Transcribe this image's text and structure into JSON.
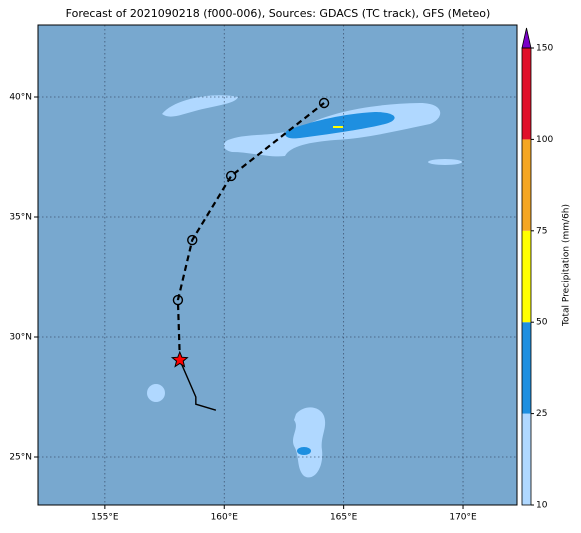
{
  "map": {
    "title": "Forecast of 2021090218 (f000-006), Sources: GDACS (TC track), GFS (Meteo)",
    "xlim": [
      152.2,
      172.26
    ],
    "ylim": [
      23,
      43
    ],
    "xticks": [
      {
        "value": 155,
        "label": "155°E"
      },
      {
        "value": 160,
        "label": "160°E"
      },
      {
        "value": 165,
        "label": "165°E"
      },
      {
        "value": 170,
        "label": "170°E"
      }
    ],
    "yticks": [
      {
        "value": 25,
        "label": "25°N"
      },
      {
        "value": 30,
        "label": "30°N"
      },
      {
        "value": 35,
        "label": "35°N"
      },
      {
        "value": 40,
        "label": "40°N"
      }
    ],
    "grid": true,
    "track": {
      "past": {
        "lon": [
          158.14,
          158.81,
          158.81,
          159.65
        ],
        "lat": [
          29.04,
          27.5,
          27.2,
          26.95
        ]
      },
      "forecast": {
        "lon": [
          158.14,
          158.06,
          158.66,
          160.29,
          164.18
        ],
        "lat": [
          29.04,
          31.54,
          34.04,
          36.71,
          39.75
        ]
      }
    },
    "colorbar": {
      "label": "Total Precipitation (mm/6h)",
      "levels": [
        10,
        25,
        50,
        75,
        100,
        150
      ],
      "colors": [
        "#b0d8ff",
        "#1e8fe0",
        "#ffff00",
        "#f5a623",
        "#e0102a"
      ],
      "extend_color": "#7a00c8"
    }
  }
}
